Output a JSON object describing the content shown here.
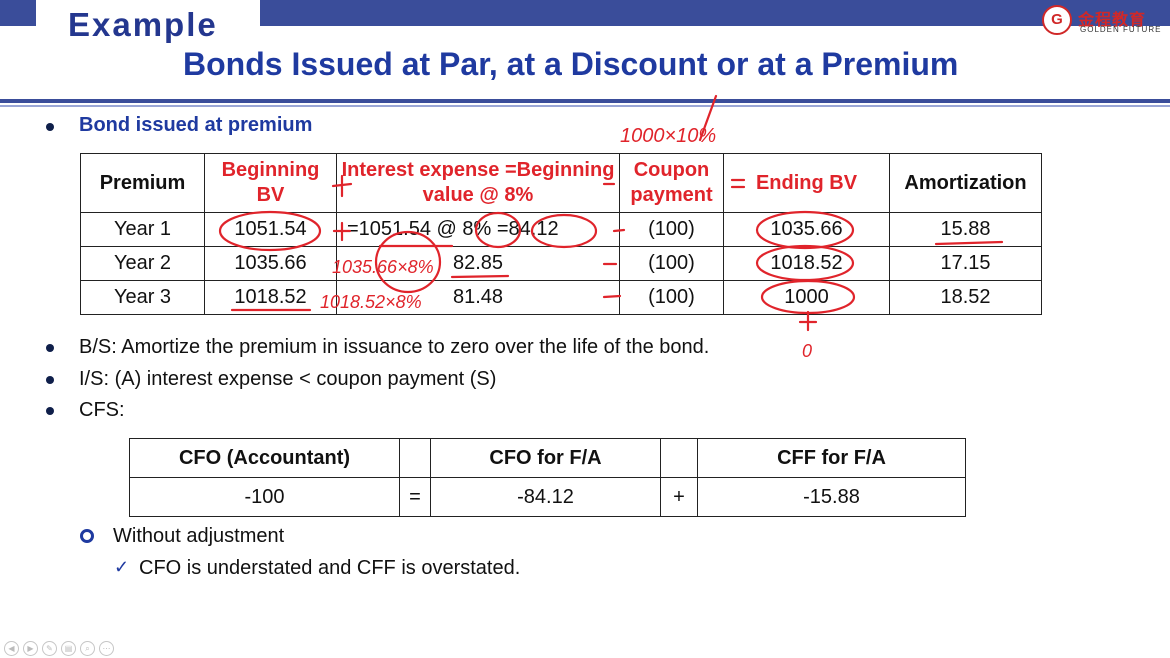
{
  "header": {
    "title": "Example",
    "subtitle": "Bonds Issued at Par, at a Discount or at a Premium",
    "logo_cn": "金程教育",
    "logo_en": "GOLDEN FUTURE"
  },
  "section": {
    "heading": "Bond issued at premium"
  },
  "bond_table": {
    "headers": [
      "Premium",
      "Beginning BV",
      "Interest expense =Beginning value @ 8%",
      "Coupon payment",
      "Ending BV",
      "Amortization"
    ],
    "rows": [
      [
        "Year 1",
        "1051.54",
        "=1051.54 @ 8% =84.12",
        "(100)",
        "1035.66",
        "15.88"
      ],
      [
        "Year 2",
        "1035.66",
        "82.85",
        "(100)",
        "1018.52",
        "17.15"
      ],
      [
        "Year 3",
        "1018.52",
        "81.48",
        "(100)",
        "1000",
        "18.52"
      ]
    ]
  },
  "bullets": [
    "B/S: Amortize the premium in issuance to zero over the life of the bond.",
    "I/S: (A) interest expense < coupon payment (S)",
    "CFS:"
  ],
  "cfs_table": {
    "headers": [
      "CFO (Accountant)",
      "",
      "CFO for F/A",
      "",
      "CFF for F/A"
    ],
    "values": [
      "-100",
      "=",
      "-84.12",
      "+",
      "-15.88"
    ]
  },
  "sub_bullet": "Without adjustment",
  "check_item": "CFO is understated and CFF is overstated.",
  "annotations": {
    "top_note": "1000×10%",
    "year2_note": "1035.66×8%",
    "year3_note": "1018.52×8%",
    "zero_mark": "0",
    "ink_color": "#e0242b"
  }
}
